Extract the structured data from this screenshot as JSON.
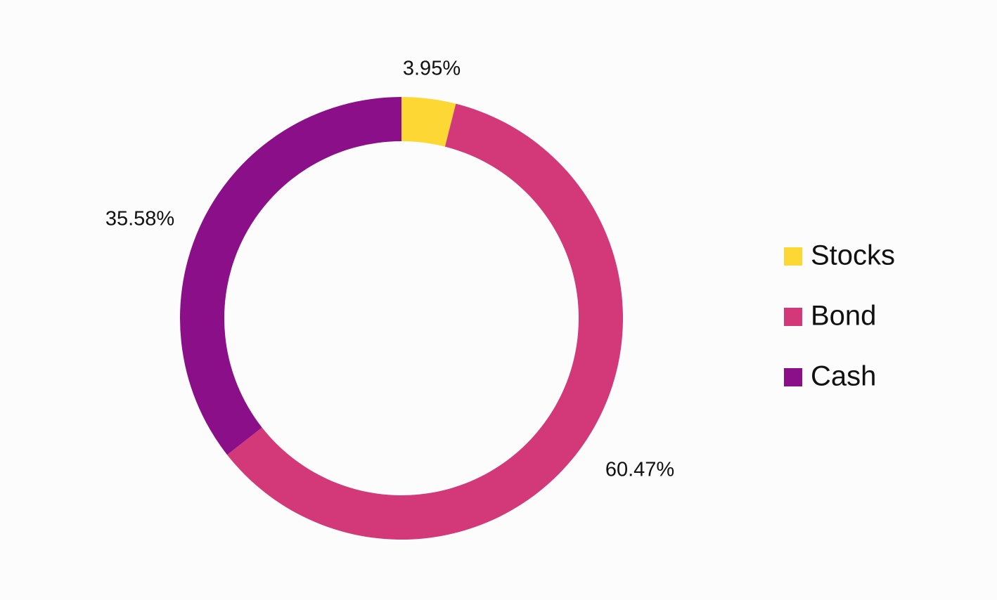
{
  "chart_data": {
    "type": "pie",
    "variant": "donut",
    "title": "",
    "legend_position": "right",
    "slices": [
      {
        "name": "Stocks",
        "value": 3.95,
        "label": "3.95%",
        "color": "#fdd835"
      },
      {
        "name": "Bond",
        "value": 60.47,
        "label": "60.47%",
        "color": "#d33878"
      },
      {
        "name": "Cash",
        "value": 35.58,
        "label": "35.58%",
        "color": "#8b0f88"
      }
    ]
  }
}
